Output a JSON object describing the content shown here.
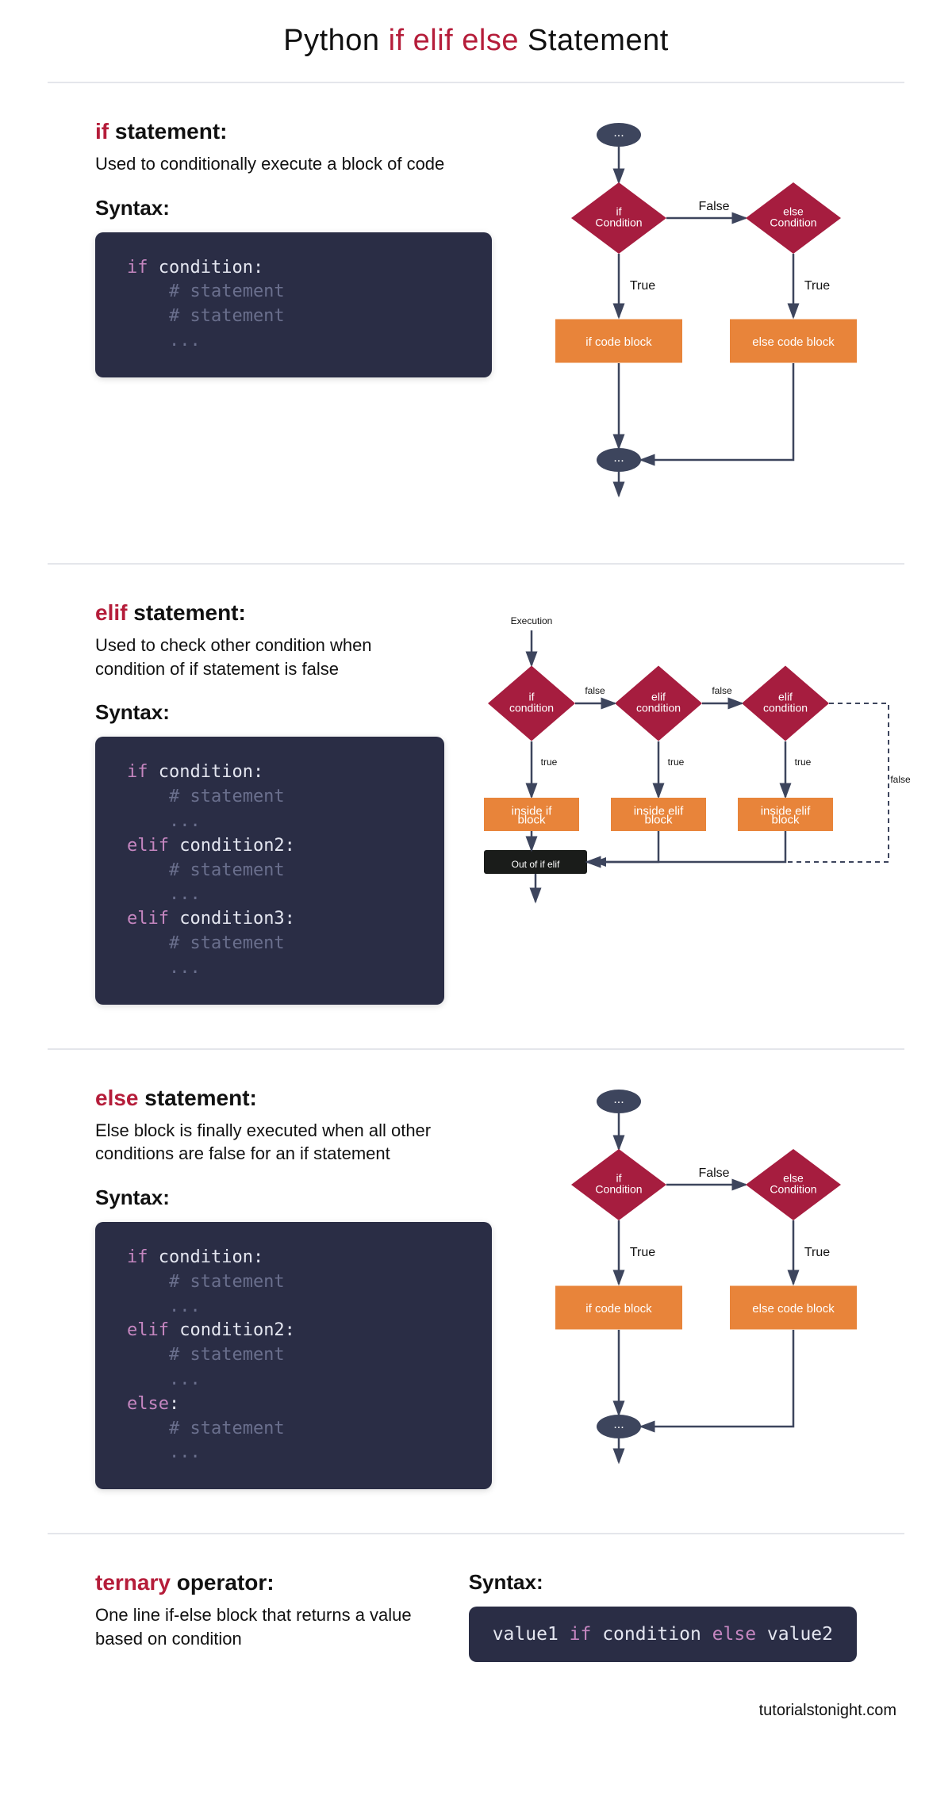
{
  "title_prefix": "Python ",
  "title_kw": "if elif else",
  "title_suffix": " Statement",
  "colors": {
    "keyword_red": "#b51d3a",
    "diamond": "#a61d3f",
    "block": "#e8843a",
    "terminator": "#3d455d",
    "line": "#3d455d",
    "codebox_bg": "#2a2d45",
    "code_keyword": "#c586c0",
    "code_text": "#e4e6f0",
    "code_comment": "#6a6f8d",
    "divider": "#e4e6eb",
    "term_block": "#1a1c1a",
    "page_bg": "#ffffff"
  },
  "typography": {
    "title_fontsize": 38,
    "section_title_fontsize": 28,
    "desc_fontsize": 22,
    "syntax_label_fontsize": 26,
    "code_fontsize": 22,
    "diagram_label_fontsize": 16
  },
  "if": {
    "heading_kw": "if",
    "heading_rest": " statement:",
    "desc": "Used to conditionally execute a block of code",
    "syntax_label": "Syntax:",
    "code": {
      "lines": [
        {
          "kw": "if",
          "text": " condition:"
        },
        {
          "cmt": "    # statement"
        },
        {
          "cmt": "    # statement"
        },
        {
          "cmt": "    ..."
        }
      ]
    },
    "diagram": {
      "type": "flowchart",
      "start": "...",
      "cond1": "if\nCondition",
      "cond2": "else\nCondition",
      "true_label": "True",
      "false_label": "False",
      "block1": "if code block",
      "block2": "else code block",
      "end": "..."
    }
  },
  "elif": {
    "heading_kw": "elif",
    "heading_rest": " statement:",
    "desc": "Used to check other condition when condition of if statement is false",
    "syntax_label": "Syntax:",
    "code": {
      "lines": [
        {
          "kw": "if",
          "text": " condition:"
        },
        {
          "cmt": "    # statement"
        },
        {
          "cmt": "    ..."
        },
        {
          "kw": "elif",
          "text": " condition2:"
        },
        {
          "cmt": "    # statement"
        },
        {
          "cmt": "    ..."
        },
        {
          "kw": "elif",
          "text": " condition3:"
        },
        {
          "cmt": "    # statement"
        },
        {
          "cmt": "    ..."
        }
      ]
    },
    "diagram": {
      "type": "flowchart",
      "execution": "Execution",
      "cond1": "if\ncondition",
      "cond2": "elif\ncondition",
      "cond3": "elif\ncondition",
      "true_label": "true",
      "false_label": "false",
      "block1": "inside if\nblock",
      "block2": "inside elif\nblock",
      "block3": "inside elif\nblock",
      "end": "Out of if elif"
    }
  },
  "else": {
    "heading_kw": "else",
    "heading_rest": " statement:",
    "desc": "Else block is finally executed when all other conditions are false for an if statement",
    "syntax_label": "Syntax:",
    "code": {
      "lines": [
        {
          "kw": "if",
          "text": " condition:"
        },
        {
          "cmt": "    # statement"
        },
        {
          "cmt": "    ..."
        },
        {
          "kw": "elif",
          "text": " condition2:"
        },
        {
          "cmt": "    # statement"
        },
        {
          "cmt": "    ..."
        },
        {
          "kw": "else",
          "text": ":"
        },
        {
          "cmt": "    # statement"
        },
        {
          "cmt": "    ..."
        }
      ]
    },
    "diagram": {
      "type": "flowchart",
      "start": "...",
      "cond1": "if\nCondition",
      "cond2": "else\nCondition",
      "true_label": "True",
      "false_label": "False",
      "block1": "if code block",
      "block2": "else code block",
      "end": "..."
    }
  },
  "ternary": {
    "heading_kw": "ternary",
    "heading_rest": " operator:",
    "desc": "One line if-else block that returns a value based on condition",
    "syntax_label": "Syntax:",
    "code_parts": {
      "v1": "value1 ",
      "if": "if",
      "cond": " condition ",
      "else": "else",
      "v2": " value2"
    }
  },
  "footer": "tutorialstonight.com"
}
